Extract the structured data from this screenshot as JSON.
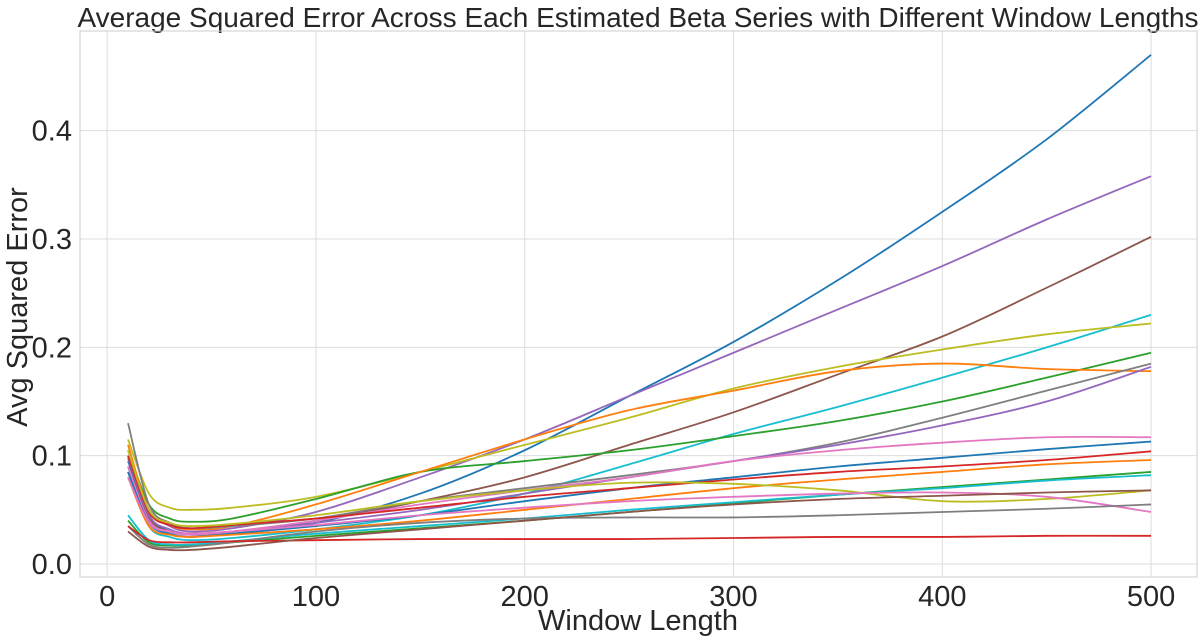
{
  "chart_data": {
    "type": "line",
    "title": "Average Squared Error Across Each Estimated Beta Series with Different Window Lengths",
    "xlabel": "Window Length",
    "ylabel": "Avg Squared Error",
    "xlim": [
      -13,
      522
    ],
    "ylim": [
      -0.012,
      0.492
    ],
    "xticks": [
      0,
      100,
      200,
      300,
      400,
      500
    ],
    "xtick_labels": [
      "0",
      "100",
      "200",
      "300",
      "400",
      "500"
    ],
    "yticks": [
      0.0,
      0.1,
      0.2,
      0.3,
      0.4
    ],
    "ytick_labels": [
      "0.0",
      "0.1",
      "0.2",
      "0.3",
      "0.4"
    ],
    "grid": true,
    "legend": "none",
    "series": [
      {
        "color": "#1f77b4",
        "x": [
          10,
          20,
          30,
          40,
          60,
          100,
          150,
          200,
          250,
          300,
          350,
          400,
          450,
          500
        ],
        "y": [
          0.095,
          0.045,
          0.03,
          0.027,
          0.028,
          0.038,
          0.065,
          0.105,
          0.155,
          0.205,
          0.262,
          0.325,
          0.392,
          0.47
        ]
      },
      {
        "color": "#9467bd",
        "x": [
          10,
          20,
          30,
          40,
          60,
          100,
          150,
          200,
          250,
          300,
          350,
          400,
          450,
          500
        ],
        "y": [
          0.1,
          0.05,
          0.035,
          0.03,
          0.033,
          0.048,
          0.08,
          0.115,
          0.155,
          0.195,
          0.235,
          0.275,
          0.318,
          0.358
        ]
      },
      {
        "color": "#8c564b",
        "x": [
          10,
          20,
          30,
          40,
          60,
          100,
          150,
          200,
          250,
          300,
          350,
          400,
          450,
          500
        ],
        "y": [
          0.09,
          0.042,
          0.03,
          0.028,
          0.03,
          0.04,
          0.058,
          0.08,
          0.11,
          0.14,
          0.175,
          0.21,
          0.255,
          0.302
        ]
      },
      {
        "color": "#17becf",
        "x": [
          10,
          20,
          30,
          40,
          60,
          100,
          150,
          200,
          250,
          300,
          350,
          400,
          450,
          500
        ],
        "y": [
          0.085,
          0.035,
          0.025,
          0.022,
          0.024,
          0.032,
          0.045,
          0.065,
          0.092,
          0.12,
          0.145,
          0.172,
          0.2,
          0.23
        ]
      },
      {
        "color": "#bcbd22",
        "x": [
          10,
          20,
          30,
          40,
          60,
          100,
          150,
          200,
          250,
          300,
          350,
          400,
          450,
          500
        ],
        "y": [
          0.115,
          0.065,
          0.052,
          0.05,
          0.052,
          0.062,
          0.085,
          0.11,
          0.135,
          0.162,
          0.182,
          0.198,
          0.212,
          0.222
        ]
      },
      {
        "color": "#2ca02c",
        "x": [
          10,
          20,
          30,
          40,
          60,
          100,
          150,
          200,
          250,
          300,
          350,
          400,
          450,
          500
        ],
        "y": [
          0.105,
          0.055,
          0.042,
          0.039,
          0.042,
          0.06,
          0.085,
          0.095,
          0.105,
          0.118,
          0.132,
          0.15,
          0.172,
          0.195
        ]
      },
      {
        "color": "#ff7f0e",
        "x": [
          10,
          20,
          30,
          40,
          60,
          100,
          150,
          200,
          250,
          300,
          350,
          400,
          450,
          500
        ],
        "y": [
          0.11,
          0.05,
          0.036,
          0.032,
          0.035,
          0.055,
          0.085,
          0.115,
          0.142,
          0.16,
          0.178,
          0.185,
          0.18,
          0.178
        ]
      },
      {
        "color": "#7f7f7f",
        "x": [
          10,
          20,
          30,
          40,
          60,
          100,
          150,
          200,
          250,
          300,
          350,
          400,
          450,
          500
        ],
        "y": [
          0.13,
          0.055,
          0.038,
          0.033,
          0.035,
          0.042,
          0.058,
          0.07,
          0.082,
          0.095,
          0.112,
          0.135,
          0.16,
          0.185
        ]
      },
      {
        "color": "#9467bd",
        "x": [
          10,
          20,
          30,
          40,
          60,
          100,
          150,
          200,
          250,
          300,
          350,
          400,
          450,
          500
        ],
        "y": [
          0.098,
          0.045,
          0.032,
          0.028,
          0.03,
          0.038,
          0.05,
          0.065,
          0.08,
          0.095,
          0.11,
          0.128,
          0.15,
          0.182
        ]
      },
      {
        "color": "#e377c2",
        "x": [
          10,
          20,
          30,
          40,
          60,
          100,
          150,
          200,
          250,
          300,
          350,
          400,
          450,
          500
        ],
        "y": [
          0.09,
          0.04,
          0.03,
          0.027,
          0.03,
          0.04,
          0.055,
          0.068,
          0.08,
          0.095,
          0.105,
          0.112,
          0.117,
          0.117
        ]
      },
      {
        "color": "#1f77b4",
        "x": [
          10,
          20,
          30,
          40,
          60,
          100,
          150,
          200,
          250,
          300,
          350,
          400,
          450,
          500
        ],
        "y": [
          0.085,
          0.038,
          0.028,
          0.025,
          0.028,
          0.035,
          0.045,
          0.058,
          0.07,
          0.08,
          0.09,
          0.098,
          0.106,
          0.113
        ]
      },
      {
        "color": "#d62728",
        "x": [
          10,
          20,
          30,
          40,
          60,
          100,
          150,
          200,
          250,
          300,
          350,
          400,
          450,
          500
        ],
        "y": [
          0.1,
          0.048,
          0.036,
          0.033,
          0.036,
          0.042,
          0.052,
          0.062,
          0.07,
          0.078,
          0.085,
          0.09,
          0.096,
          0.104
        ]
      },
      {
        "color": "#ff7f0e",
        "x": [
          10,
          20,
          30,
          40,
          60,
          100,
          150,
          200,
          250,
          300,
          350,
          400,
          450,
          500
        ],
        "y": [
          0.08,
          0.035,
          0.027,
          0.025,
          0.027,
          0.032,
          0.04,
          0.05,
          0.06,
          0.07,
          0.078,
          0.085,
          0.092,
          0.096
        ]
      },
      {
        "color": "#2ca02c",
        "x": [
          10,
          20,
          30,
          40,
          60,
          100,
          150,
          200,
          250,
          300,
          350,
          400,
          450,
          500
        ],
        "y": [
          0.04,
          0.02,
          0.017,
          0.017,
          0.02,
          0.026,
          0.033,
          0.04,
          0.048,
          0.056,
          0.064,
          0.071,
          0.078,
          0.085
        ]
      },
      {
        "color": "#17becf",
        "x": [
          10,
          20,
          30,
          40,
          60,
          100,
          150,
          200,
          250,
          300,
          350,
          400,
          450,
          500
        ],
        "y": [
          0.045,
          0.022,
          0.018,
          0.018,
          0.021,
          0.028,
          0.035,
          0.042,
          0.05,
          0.057,
          0.064,
          0.07,
          0.077,
          0.082
        ]
      },
      {
        "color": "#bcbd22",
        "x": [
          10,
          20,
          30,
          40,
          60,
          100,
          150,
          200,
          250,
          300,
          350,
          400,
          450,
          500
        ],
        "y": [
          0.105,
          0.05,
          0.038,
          0.035,
          0.037,
          0.045,
          0.058,
          0.068,
          0.075,
          0.074,
          0.068,
          0.058,
          0.06,
          0.068
        ]
      },
      {
        "color": "#e377c2",
        "x": [
          10,
          20,
          30,
          40,
          60,
          100,
          150,
          200,
          250,
          300,
          350,
          400,
          450,
          500
        ],
        "y": [
          0.08,
          0.038,
          0.03,
          0.028,
          0.03,
          0.036,
          0.045,
          0.052,
          0.058,
          0.062,
          0.065,
          0.066,
          0.062,
          0.048
        ]
      },
      {
        "color": "#7f7f7f",
        "x": [
          10,
          20,
          30,
          40,
          60,
          100,
          150,
          200,
          250,
          300,
          350,
          400,
          450,
          500
        ],
        "y": [
          0.035,
          0.018,
          0.015,
          0.016,
          0.02,
          0.03,
          0.038,
          0.042,
          0.043,
          0.043,
          0.045,
          0.048,
          0.051,
          0.055
        ]
      },
      {
        "color": "#d62728",
        "x": [
          10,
          20,
          30,
          40,
          60,
          100,
          150,
          200,
          250,
          300,
          350,
          400,
          450,
          500
        ],
        "y": [
          0.035,
          0.022,
          0.02,
          0.02,
          0.021,
          0.022,
          0.023,
          0.023,
          0.023,
          0.024,
          0.025,
          0.025,
          0.026,
          0.026
        ]
      },
      {
        "color": "#8c564b",
        "x": [
          10,
          20,
          30,
          40,
          60,
          100,
          150,
          200,
          250,
          300,
          350,
          400,
          450,
          500
        ],
        "y": [
          0.03,
          0.016,
          0.013,
          0.013,
          0.016,
          0.024,
          0.032,
          0.04,
          0.048,
          0.055,
          0.06,
          0.063,
          0.066,
          0.068
        ]
      }
    ]
  }
}
